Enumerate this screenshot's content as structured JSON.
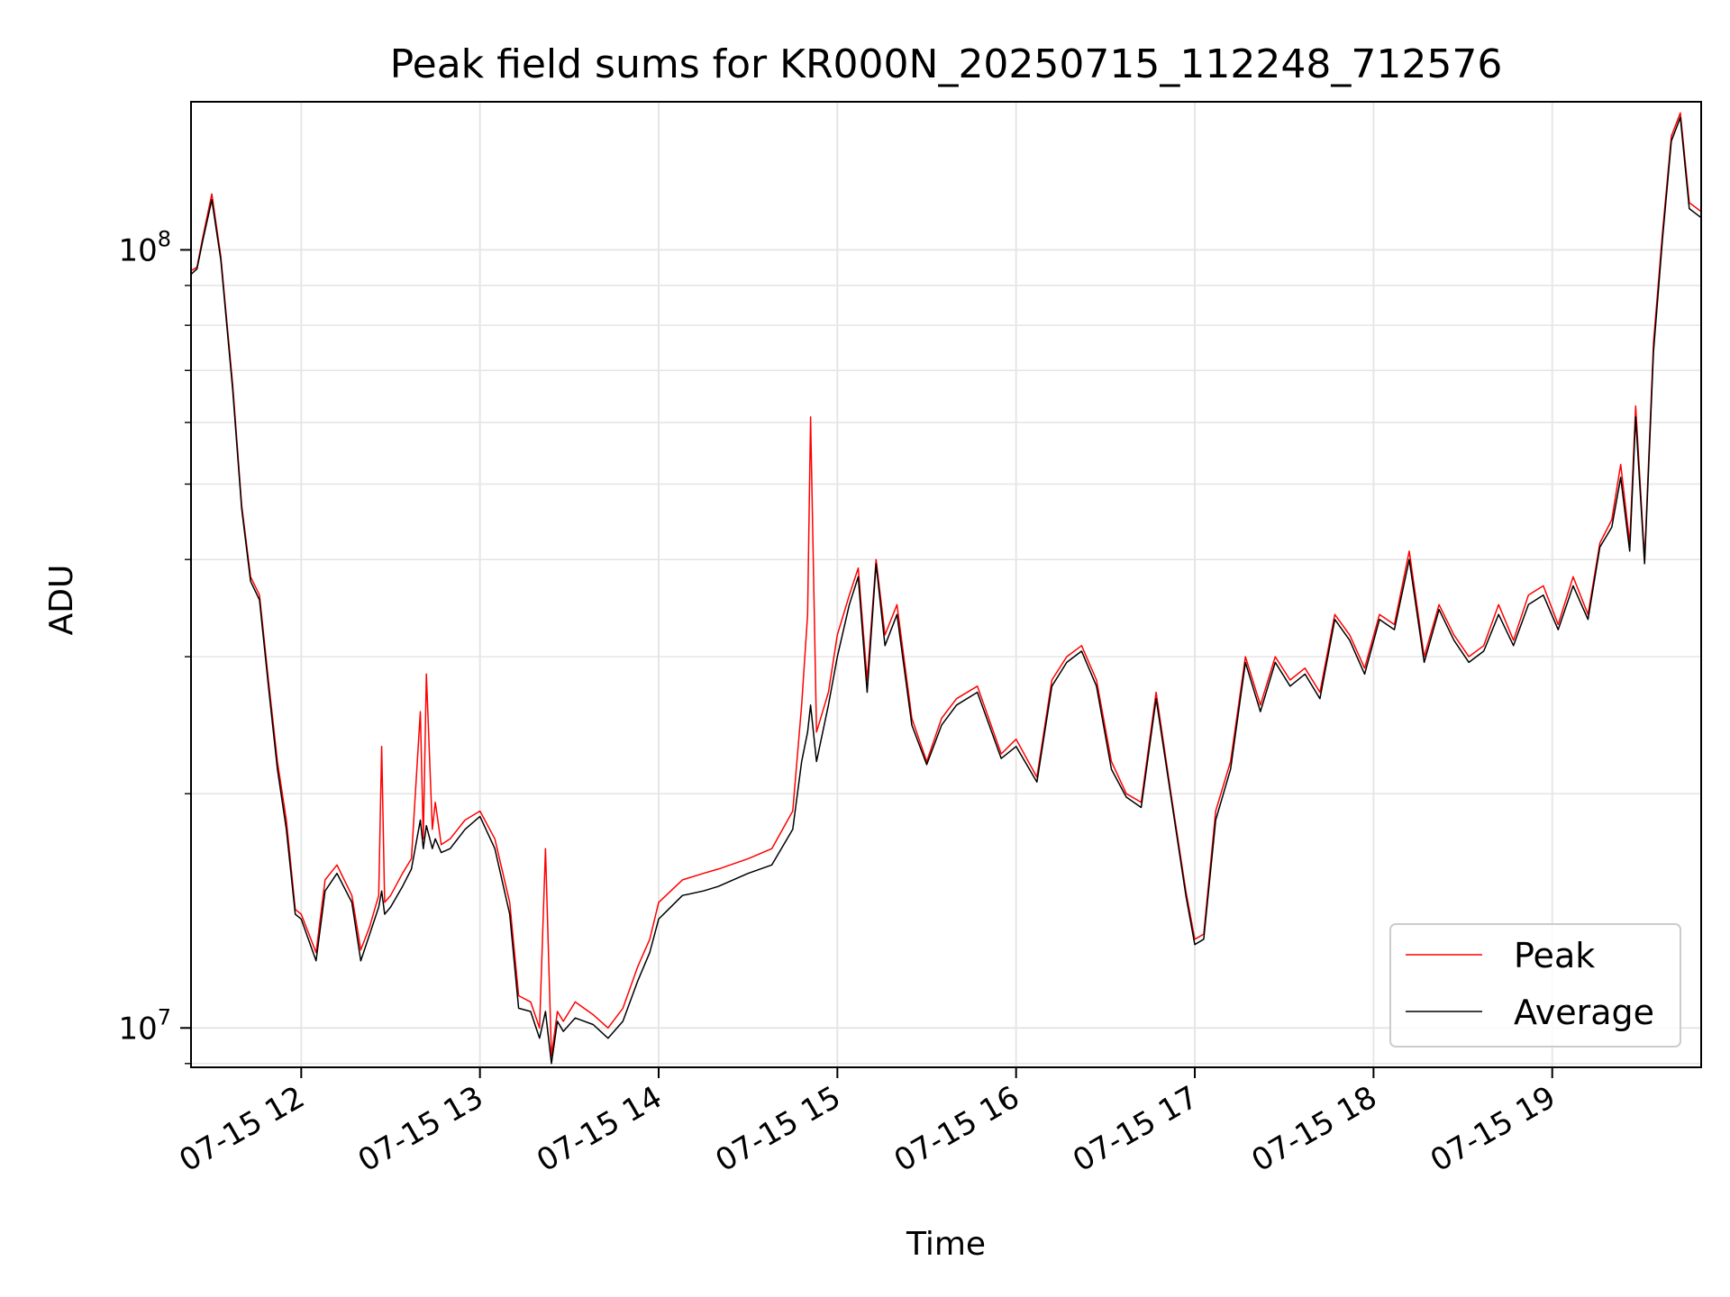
{
  "chart_data": {
    "type": "line",
    "title": "Peak field sums for KR000N_20250715_112248_712576",
    "xlabel": "Time",
    "ylabel": "ADU",
    "y_scale": "log",
    "ylim": [
      8900000,
      155000000
    ],
    "xlim": [
      "2025-07-15 11:23",
      "2025-07-15 19:50"
    ],
    "grid": true,
    "legend_position": "lower-right",
    "x_ticks": [
      {
        "label": "07-15 12",
        "value": "2025-07-15 12:00"
      },
      {
        "label": "07-15 13",
        "value": "2025-07-15 13:00"
      },
      {
        "label": "07-15 14",
        "value": "2025-07-15 14:00"
      },
      {
        "label": "07-15 15",
        "value": "2025-07-15 15:00"
      },
      {
        "label": "07-15 16",
        "value": "2025-07-15 16:00"
      },
      {
        "label": "07-15 17",
        "value": "2025-07-15 17:00"
      },
      {
        "label": "07-15 18",
        "value": "2025-07-15 18:00"
      },
      {
        "label": "07-15 19",
        "value": "2025-07-15 19:00"
      }
    ],
    "y_ticks": [
      {
        "base": "10",
        "exp": "7",
        "value": 10000000
      },
      {
        "base": "10",
        "exp": "8",
        "value": 100000000
      }
    ],
    "series": [
      {
        "name": "Peak",
        "color": "#ff0000",
        "x": [
          "2025-07-15 11:23",
          "2025-07-15 11:25",
          "2025-07-15 11:27",
          "2025-07-15 11:30",
          "2025-07-15 11:33",
          "2025-07-15 11:37",
          "2025-07-15 11:40",
          "2025-07-15 11:43",
          "2025-07-15 11:46",
          "2025-07-15 11:49",
          "2025-07-15 11:52",
          "2025-07-15 11:55",
          "2025-07-15 11:58",
          "2025-07-15 12:00",
          "2025-07-15 12:05",
          "2025-07-15 12:08",
          "2025-07-15 12:12",
          "2025-07-15 12:17",
          "2025-07-15 12:20",
          "2025-07-15 12:23",
          "2025-07-15 12:26",
          "2025-07-15 12:27",
          "2025-07-15 12:28",
          "2025-07-15 12:30",
          "2025-07-15 12:34",
          "2025-07-15 12:37",
          "2025-07-15 12:40",
          "2025-07-15 12:41",
          "2025-07-15 12:42",
          "2025-07-15 12:44",
          "2025-07-15 12:45",
          "2025-07-15 12:47",
          "2025-07-15 12:50",
          "2025-07-15 12:55",
          "2025-07-15 13:00",
          "2025-07-15 13:05",
          "2025-07-15 13:10",
          "2025-07-15 13:13",
          "2025-07-15 13:17",
          "2025-07-15 13:20",
          "2025-07-15 13:22",
          "2025-07-15 13:24",
          "2025-07-15 13:26",
          "2025-07-15 13:28",
          "2025-07-15 13:32",
          "2025-07-15 13:38",
          "2025-07-15 13:43",
          "2025-07-15 13:48",
          "2025-07-15 13:53",
          "2025-07-15 13:57",
          "2025-07-15 14:00",
          "2025-07-15 14:08",
          "2025-07-15 14:15",
          "2025-07-15 14:20",
          "2025-07-15 14:30",
          "2025-07-15 14:38",
          "2025-07-15 14:45",
          "2025-07-15 14:48",
          "2025-07-15 14:50",
          "2025-07-15 14:51",
          "2025-07-15 14:53",
          "2025-07-15 14:57",
          "2025-07-15 15:00",
          "2025-07-15 15:04",
          "2025-07-15 15:07",
          "2025-07-15 15:10",
          "2025-07-15 15:13",
          "2025-07-15 15:16",
          "2025-07-15 15:20",
          "2025-07-15 15:25",
          "2025-07-15 15:30",
          "2025-07-15 15:35",
          "2025-07-15 15:40",
          "2025-07-15 15:47",
          "2025-07-15 15:55",
          "2025-07-15 16:00",
          "2025-07-15 16:07",
          "2025-07-15 16:12",
          "2025-07-15 16:17",
          "2025-07-15 16:22",
          "2025-07-15 16:27",
          "2025-07-15 16:32",
          "2025-07-15 16:37",
          "2025-07-15 16:42",
          "2025-07-15 16:47",
          "2025-07-15 16:52",
          "2025-07-15 16:57",
          "2025-07-15 17:00",
          "2025-07-15 17:03",
          "2025-07-15 17:07",
          "2025-07-15 17:12",
          "2025-07-15 17:17",
          "2025-07-15 17:22",
          "2025-07-15 17:27",
          "2025-07-15 17:32",
          "2025-07-15 17:37",
          "2025-07-15 17:42",
          "2025-07-15 17:47",
          "2025-07-15 17:52",
          "2025-07-15 17:57",
          "2025-07-15 18:02",
          "2025-07-15 18:07",
          "2025-07-15 18:12",
          "2025-07-15 18:17",
          "2025-07-15 18:22",
          "2025-07-15 18:27",
          "2025-07-15 18:32",
          "2025-07-15 18:37",
          "2025-07-15 18:42",
          "2025-07-15 18:47",
          "2025-07-15 18:52",
          "2025-07-15 18:57",
          "2025-07-15 19:02",
          "2025-07-15 19:07",
          "2025-07-15 19:12",
          "2025-07-15 19:16",
          "2025-07-15 19:20",
          "2025-07-15 19:23",
          "2025-07-15 19:26",
          "2025-07-15 19:28",
          "2025-07-15 19:31",
          "2025-07-15 19:34",
          "2025-07-15 19:37",
          "2025-07-15 19:40",
          "2025-07-15 19:43",
          "2025-07-15 19:46",
          "2025-07-15 19:50"
        ],
        "values": [
          94000000,
          95000000,
          104000000,
          118000000,
          98000000,
          67000000,
          47000000,
          38000000,
          36000000,
          28000000,
          22000000,
          18500000,
          14200000,
          14000000,
          12500000,
          15500000,
          16200000,
          14800000,
          12600000,
          13500000,
          14800000,
          23000000,
          14500000,
          14800000,
          15800000,
          16500000,
          25500000,
          17500000,
          28500000,
          18000000,
          19500000,
          17200000,
          17500000,
          18500000,
          19000000,
          17500000,
          14500000,
          11000000,
          10800000,
          10000000,
          17000000,
          9200000,
          10500000,
          10200000,
          10800000,
          10400000,
          10000000,
          10600000,
          12000000,
          13000000,
          14500000,
          15500000,
          15800000,
          16000000,
          16500000,
          17000000,
          19000000,
          26000000,
          34000000,
          61000000,
          24000000,
          27000000,
          32000000,
          36000000,
          39000000,
          28000000,
          40000000,
          32000000,
          35000000,
          25000000,
          22000000,
          25000000,
          26500000,
          27500000,
          22500000,
          23500000,
          21000000,
          28000000,
          30000000,
          31000000,
          28000000,
          22000000,
          20000000,
          19500000,
          27000000,
          20000000,
          15000000,
          13000000,
          13200000,
          19000000,
          22000000,
          30000000,
          26000000,
          30000000,
          28000000,
          29000000,
          27000000,
          34000000,
          32000000,
          29000000,
          34000000,
          33000000,
          41000000,
          30000000,
          35000000,
          32000000,
          30000000,
          31000000,
          35000000,
          31500000,
          36000000,
          37000000,
          33000000,
          38000000,
          34000000,
          42000000,
          45000000,
          53000000,
          42000000,
          63000000,
          40000000,
          76000000,
          105000000,
          140000000,
          150000000,
          115000000,
          112000000
        ]
      },
      {
        "name": "Average",
        "color": "#000000",
        "x": [
          "2025-07-15 11:23",
          "2025-07-15 11:25",
          "2025-07-15 11:27",
          "2025-07-15 11:30",
          "2025-07-15 11:33",
          "2025-07-15 11:37",
          "2025-07-15 11:40",
          "2025-07-15 11:43",
          "2025-07-15 11:46",
          "2025-07-15 11:49",
          "2025-07-15 11:52",
          "2025-07-15 11:55",
          "2025-07-15 11:58",
          "2025-07-15 12:00",
          "2025-07-15 12:05",
          "2025-07-15 12:08",
          "2025-07-15 12:12",
          "2025-07-15 12:17",
          "2025-07-15 12:20",
          "2025-07-15 12:23",
          "2025-07-15 12:26",
          "2025-07-15 12:27",
          "2025-07-15 12:28",
          "2025-07-15 12:30",
          "2025-07-15 12:34",
          "2025-07-15 12:37",
          "2025-07-15 12:40",
          "2025-07-15 12:41",
          "2025-07-15 12:42",
          "2025-07-15 12:44",
          "2025-07-15 12:45",
          "2025-07-15 12:47",
          "2025-07-15 12:50",
          "2025-07-15 12:55",
          "2025-07-15 13:00",
          "2025-07-15 13:05",
          "2025-07-15 13:10",
          "2025-07-15 13:13",
          "2025-07-15 13:17",
          "2025-07-15 13:20",
          "2025-07-15 13:22",
          "2025-07-15 13:24",
          "2025-07-15 13:26",
          "2025-07-15 13:28",
          "2025-07-15 13:32",
          "2025-07-15 13:38",
          "2025-07-15 13:43",
          "2025-07-15 13:48",
          "2025-07-15 13:53",
          "2025-07-15 13:57",
          "2025-07-15 14:00",
          "2025-07-15 14:08",
          "2025-07-15 14:15",
          "2025-07-15 14:20",
          "2025-07-15 14:30",
          "2025-07-15 14:38",
          "2025-07-15 14:45",
          "2025-07-15 14:48",
          "2025-07-15 14:50",
          "2025-07-15 14:51",
          "2025-07-15 14:53",
          "2025-07-15 14:57",
          "2025-07-15 15:00",
          "2025-07-15 15:04",
          "2025-07-15 15:07",
          "2025-07-15 15:10",
          "2025-07-15 15:13",
          "2025-07-15 15:16",
          "2025-07-15 15:20",
          "2025-07-15 15:25",
          "2025-07-15 15:30",
          "2025-07-15 15:35",
          "2025-07-15 15:40",
          "2025-07-15 15:47",
          "2025-07-15 15:55",
          "2025-07-15 16:00",
          "2025-07-15 16:07",
          "2025-07-15 16:12",
          "2025-07-15 16:17",
          "2025-07-15 16:22",
          "2025-07-15 16:27",
          "2025-07-15 16:32",
          "2025-07-15 16:37",
          "2025-07-15 16:42",
          "2025-07-15 16:47",
          "2025-07-15 16:52",
          "2025-07-15 16:57",
          "2025-07-15 17:00",
          "2025-07-15 17:03",
          "2025-07-15 17:07",
          "2025-07-15 17:12",
          "2025-07-15 17:17",
          "2025-07-15 17:22",
          "2025-07-15 17:27",
          "2025-07-15 17:32",
          "2025-07-15 17:37",
          "2025-07-15 17:42",
          "2025-07-15 17:47",
          "2025-07-15 17:52",
          "2025-07-15 17:57",
          "2025-07-15 18:02",
          "2025-07-15 18:07",
          "2025-07-15 18:12",
          "2025-07-15 18:17",
          "2025-07-15 18:22",
          "2025-07-15 18:27",
          "2025-07-15 18:32",
          "2025-07-15 18:37",
          "2025-07-15 18:42",
          "2025-07-15 18:47",
          "2025-07-15 18:52",
          "2025-07-15 18:57",
          "2025-07-15 19:02",
          "2025-07-15 19:07",
          "2025-07-15 19:12",
          "2025-07-15 19:16",
          "2025-07-15 19:20",
          "2025-07-15 19:23",
          "2025-07-15 19:26",
          "2025-07-15 19:28",
          "2025-07-15 19:31",
          "2025-07-15 19:34",
          "2025-07-15 19:37",
          "2025-07-15 19:40",
          "2025-07-15 19:43",
          "2025-07-15 19:46",
          "2025-07-15 19:50"
        ],
        "values": [
          93000000,
          94500000,
          103000000,
          116000000,
          97000000,
          66000000,
          46500000,
          37500000,
          35500000,
          27500000,
          21500000,
          18000000,
          14000000,
          13800000,
          12200000,
          15000000,
          15800000,
          14500000,
          12200000,
          13200000,
          14300000,
          15000000,
          14000000,
          14300000,
          15200000,
          16000000,
          18500000,
          17000000,
          18200000,
          17000000,
          17500000,
          16800000,
          17000000,
          18000000,
          18700000,
          17000000,
          14000000,
          10600000,
          10500000,
          9700000,
          10500000,
          9000000,
          10200000,
          9900000,
          10300000,
          10100000,
          9700000,
          10200000,
          11500000,
          12500000,
          13800000,
          14800000,
          15000000,
          15200000,
          15800000,
          16200000,
          18000000,
          22000000,
          24000000,
          26000000,
          22000000,
          26000000,
          30000000,
          35000000,
          38000000,
          27000000,
          39500000,
          31000000,
          34000000,
          24500000,
          21800000,
          24500000,
          26000000,
          27000000,
          22200000,
          23000000,
          20700000,
          27500000,
          29500000,
          30500000,
          27500000,
          21500000,
          19800000,
          19200000,
          26500000,
          19800000,
          14800000,
          12800000,
          13000000,
          18500000,
          21500000,
          29500000,
          25500000,
          29500000,
          27500000,
          28500000,
          26500000,
          33500000,
          31500000,
          28500000,
          33500000,
          32500000,
          40000000,
          29500000,
          34500000,
          31500000,
          29500000,
          30500000,
          34000000,
          31000000,
          35000000,
          36000000,
          32500000,
          37000000,
          33500000,
          41500000,
          44000000,
          51000000,
          41000000,
          61000000,
          39500000,
          74000000,
          103000000,
          138000000,
          148000000,
          113000000,
          110000000
        ]
      }
    ]
  }
}
